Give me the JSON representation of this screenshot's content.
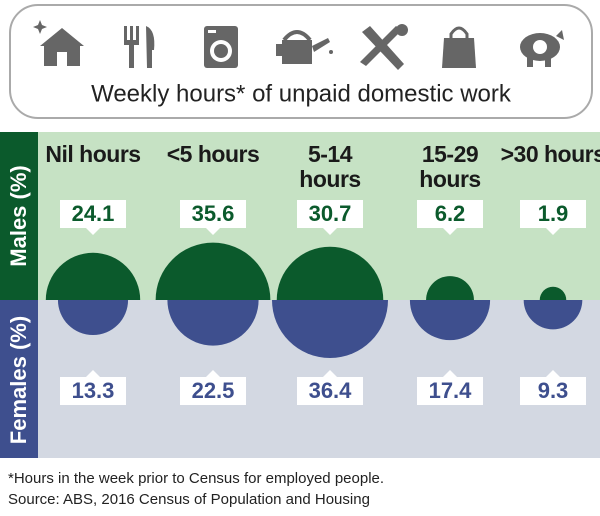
{
  "chart_data": {
    "type": "half-bubble",
    "title": "Weekly hours* of unpaid domestic work",
    "categories": [
      "Nil hours",
      "<5 hours",
      "5-14 hours",
      "15-29 hours",
      ">30 hours"
    ],
    "series": [
      {
        "name": "Males (%)",
        "color": "#0b5a2c",
        "values": [
          24.1,
          35.6,
          30.7,
          6.2,
          1.9
        ]
      },
      {
        "name": "Females (%)",
        "color": "#3e4f8e",
        "values": [
          13.3,
          22.5,
          36.4,
          17.4,
          9.3
        ]
      }
    ],
    "footnote": "*Hours in the week prior to Census for employed people.",
    "source": "Source: ABS, 2016 Census of Population and Housing"
  }
}
